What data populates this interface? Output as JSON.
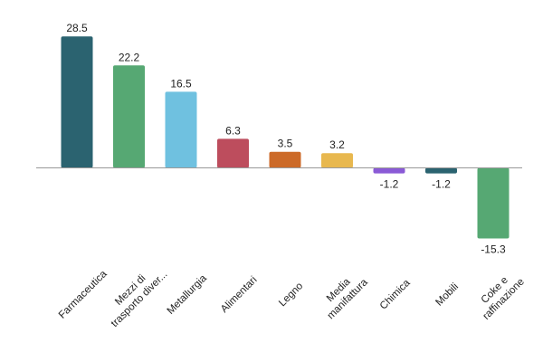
{
  "chart_data": {
    "type": "bar",
    "categories": [
      "Farmaceutica",
      "Mezzi di trasporto diver...",
      "Metallurgia",
      "Alimentari",
      "Legno",
      "Media manifattura",
      "Chimica",
      "Mobili",
      "Coke e raffinazione"
    ],
    "category_lines": [
      [
        "Farmaceutica"
      ],
      [
        "Mezzi di",
        "trasporto diver..."
      ],
      [
        "Metallurgia"
      ],
      [
        "Alimentari"
      ],
      [
        "Legno"
      ],
      [
        "Media",
        "manifattura"
      ],
      [
        "Chimica"
      ],
      [
        "Mobili"
      ],
      [
        "Coke e",
        "raffinazione"
      ]
    ],
    "values": [
      28.5,
      22.2,
      16.5,
      6.3,
      3.5,
      3.2,
      -1.2,
      -1.2,
      -15.3
    ],
    "value_labels": [
      "28.5",
      "22.2",
      "16.5",
      "6.3",
      "3.5",
      "3.2",
      "-1.2",
      "-1.2",
      "-15.3"
    ],
    "colors": [
      "#2b6370",
      "#56a873",
      "#6fc1e0",
      "#bd4d5d",
      "#cc6a28",
      "#e8b84f",
      "#8a5ad6",
      "#2b6370",
      "#56a873"
    ],
    "baseline_color": "#999999",
    "title": "",
    "xlabel": "",
    "ylabel": "",
    "grid": false,
    "legend": "none"
  }
}
